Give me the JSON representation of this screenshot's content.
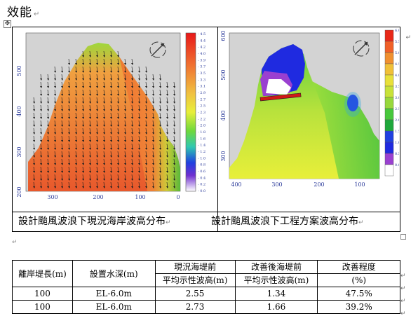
{
  "heading": "效能",
  "figures": {
    "left": {
      "caption": "設計颱風波浪下現況海岸波高分布",
      "y_ticks": [
        "500",
        "400",
        "300",
        "200"
      ],
      "x_ticks": [
        "300",
        "200",
        "100",
        "0"
      ],
      "colorbar": [
        "4.5",
        "4.4",
        "4.2",
        "4.0",
        "3.9",
        "3.7",
        "3.5",
        "3.3",
        "3.1",
        "2.9",
        "2.7",
        "2.5",
        "2.3",
        "2.2",
        "2.0",
        "1.8",
        "1.6",
        "1.4",
        "1.2",
        "1.0",
        "0.8",
        "0.6",
        "0.4",
        "0.2",
        "0.0"
      ]
    },
    "right": {
      "caption": "設計颱風波浪下工程方案波高分布",
      "y_ticks": [
        "600",
        "500",
        "400",
        "300"
      ],
      "x_ticks": [
        "400",
        "300",
        "200",
        "100"
      ],
      "colorbar": [
        "6.0",
        "5.5",
        "5.0",
        "4.5",
        "4.0",
        "3.5",
        "3.0",
        "2.5",
        "2.0",
        "1.5",
        "1.0",
        "0.5",
        "0.0"
      ]
    }
  },
  "table": {
    "headers": {
      "distance": "離岸堤長(m)",
      "depth": "設置水深(m)",
      "before_top": "現況海堤前",
      "before_bottom": "平均示性波高(m)",
      "after_top": "改善後海堤前",
      "after_bottom": "平均示性波高(m)",
      "improve_top": "改善程度",
      "improve_bottom": "(%)"
    },
    "rows": [
      {
        "distance": "100",
        "depth": "EL-6.0m",
        "before": "2.55",
        "after": "1.34",
        "improve": "47.5%"
      },
      {
        "distance": "100",
        "depth": "EL-6.0m",
        "before": "2.73",
        "after": "1.66",
        "improve": "39.2%"
      }
    ]
  },
  "colors": {
    "land": "#d3d3d3",
    "sea_high": "#e8502a",
    "sea_green": "#4dc83c",
    "sea_yellow": "#e8ef3a",
    "sea_blue": "#1f2ae0",
    "breakwater": "#d01818"
  },
  "marks": {
    "return": "↵",
    "move_handle": "✥"
  }
}
